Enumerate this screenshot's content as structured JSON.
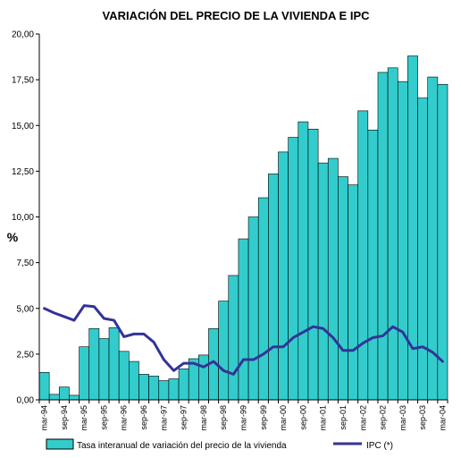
{
  "chart_data": {
    "type": "bar",
    "title": "VARIACIÓN DEL PRECIO DE LA VIVIENDA E IPC",
    "xlabel": "",
    "ylabel": "%",
    "ylim": [
      0,
      20
    ],
    "yticks": [
      "0,00",
      "2,50",
      "5,00",
      "7,50",
      "10,00",
      "12,50",
      "15,00",
      "17,50",
      "20,00"
    ],
    "grid": false,
    "legend_position": "bottom",
    "x_tick_labels": [
      "mar-94",
      "sep-94",
      "mar-95",
      "sep-95",
      "mar-96",
      "sep-96",
      "mar-97",
      "sep-97",
      "mar-98",
      "sep-98",
      "mar-99",
      "sep-99",
      "mar-00",
      "sep-00",
      "mar-01",
      "sep-01",
      "mar-02",
      "sep-02",
      "mar-03",
      "sep-03",
      "mar-04"
    ],
    "categories": [
      "mar-94",
      "jun-94",
      "sep-94",
      "dic-94",
      "mar-95",
      "jun-95",
      "sep-95",
      "dic-95",
      "mar-96",
      "jun-96",
      "sep-96",
      "dic-96",
      "mar-97",
      "jun-97",
      "sep-97",
      "dic-97",
      "mar-98",
      "jun-98",
      "sep-98",
      "dic-98",
      "mar-99",
      "jun-99",
      "sep-99",
      "dic-99",
      "mar-00",
      "jun-00",
      "sep-00",
      "dic-00",
      "mar-01",
      "jun-01",
      "sep-01",
      "dic-01",
      "mar-02",
      "jun-02",
      "sep-02",
      "dic-02",
      "mar-03",
      "jun-03",
      "sep-03",
      "dic-03",
      "mar-04"
    ],
    "series": [
      {
        "name": "Tasa interanual de variación del precio de la vivienda",
        "kind": "bar",
        "color": "#33CCCC",
        "values": [
          1.5,
          0.3,
          0.7,
          0.25,
          2.9,
          3.9,
          3.35,
          3.95,
          2.65,
          2.1,
          1.4,
          1.3,
          1.05,
          1.15,
          1.7,
          2.25,
          2.45,
          3.9,
          5.4,
          6.8,
          8.8,
          10.0,
          11.05,
          12.35,
          13.55,
          14.35,
          15.2,
          14.8,
          12.95,
          13.2,
          12.2,
          11.75,
          15.8,
          14.75,
          17.9,
          18.15,
          17.4,
          18.8,
          16.5,
          17.65,
          17.25
        ]
      },
      {
        "name": "IPC (*)",
        "kind": "line",
        "color": "#333399",
        "values": [
          5.0,
          4.75,
          4.55,
          4.35,
          5.15,
          5.1,
          4.45,
          4.35,
          3.45,
          3.6,
          3.6,
          3.15,
          2.2,
          1.6,
          2.0,
          2.0,
          1.8,
          2.1,
          1.6,
          1.4,
          2.2,
          2.2,
          2.5,
          2.9,
          2.9,
          3.4,
          3.7,
          4.0,
          3.9,
          3.4,
          2.7,
          2.7,
          3.1,
          3.4,
          3.5,
          4.0,
          3.7,
          2.8,
          2.9,
          2.6,
          2.1
        ]
      }
    ]
  }
}
